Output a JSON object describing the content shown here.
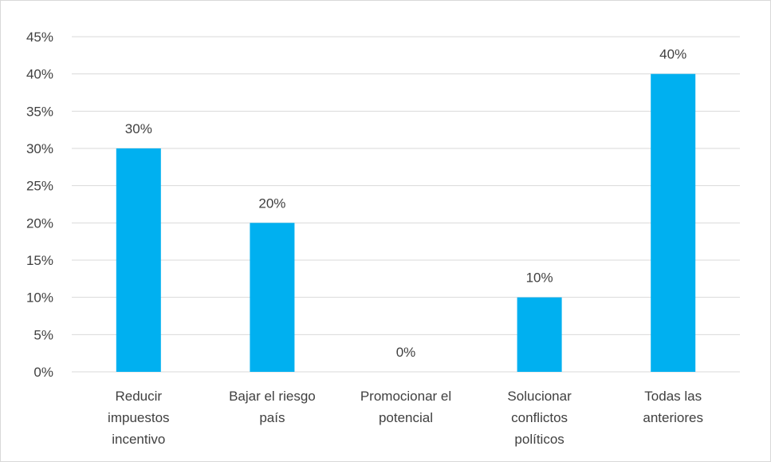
{
  "chart_data": {
    "type": "bar",
    "title": "",
    "xlabel": "",
    "ylabel": "",
    "categories": [
      [
        "Reducir",
        "impuestos",
        "incentivo"
      ],
      [
        "Bajar el riesgo",
        "país"
      ],
      [
        "Promocionar el",
        "potencial"
      ],
      [
        "Solucionar",
        "conflictos",
        "políticos"
      ],
      [
        "Todas las",
        "anteriores"
      ]
    ],
    "values": [
      30,
      20,
      0,
      10,
      40
    ],
    "data_labels": [
      "30%",
      "20%",
      "0%",
      "10%",
      "40%"
    ],
    "ylim": [
      0,
      45
    ],
    "yticks": [
      0,
      5,
      10,
      15,
      20,
      25,
      30,
      35,
      40,
      45
    ],
    "ytick_labels": [
      "0%",
      "5%",
      "10%",
      "15%",
      "20%",
      "25%",
      "30%",
      "35%",
      "40%",
      "45%"
    ],
    "grid": true,
    "legend": "none",
    "colors": {
      "bar": "#00B0F0",
      "grid": "#d9d9d9",
      "text": "#404040"
    }
  }
}
